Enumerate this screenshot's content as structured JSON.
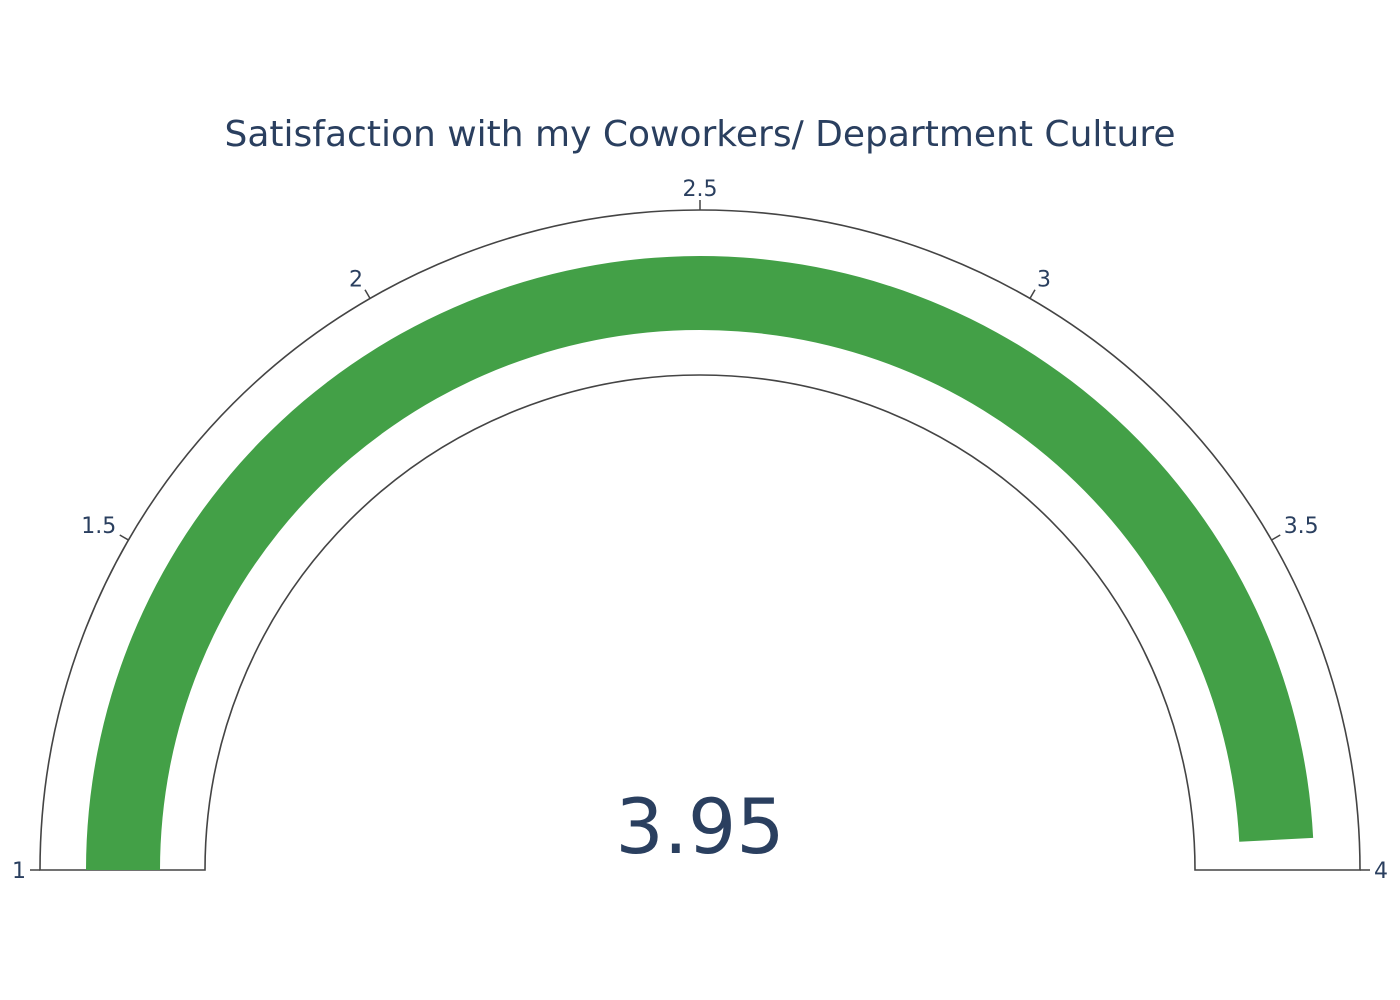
{
  "chart_data": {
    "type": "gauge",
    "title": "Satisfaction with my Coworkers/ Department Culture",
    "value": 3.95,
    "value_label": "3.95",
    "range": [
      1,
      4
    ],
    "ticks": [
      {
        "value": 1,
        "label": "1"
      },
      {
        "value": 1.5,
        "label": "1.5"
      },
      {
        "value": 2,
        "label": "2"
      },
      {
        "value": 2.5,
        "label": "2.5"
      },
      {
        "value": 3,
        "label": "3"
      },
      {
        "value": 3.5,
        "label": "3.5"
      },
      {
        "value": 4,
        "label": "4"
      }
    ],
    "bar_color": "#43a047",
    "outline_color": "#444444",
    "text_color": "#2a3f5f"
  }
}
